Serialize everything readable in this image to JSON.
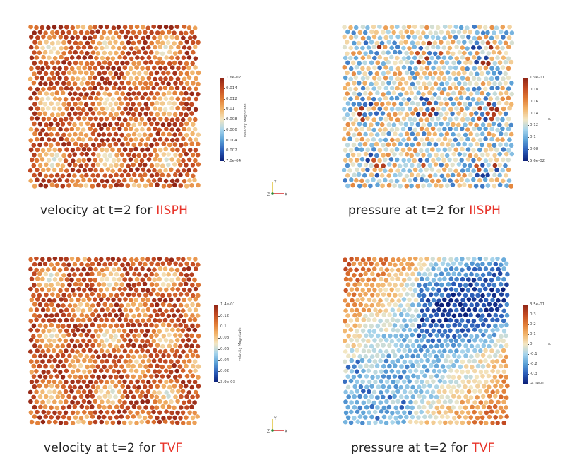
{
  "panels": [
    {
      "id": "iisph-velocity",
      "caption_text": "velocity at t=2 for ",
      "caption_method": "IISPH",
      "field": "velocity",
      "pattern": "vortex-cells",
      "seed": 11,
      "colorbar": {
        "title": "velocity Magnitude",
        "ticks": [
          "1.6e-02",
          "0.014",
          "0.012",
          "0.01",
          "0.008",
          "0.006",
          "0.004",
          "0.002",
          "7.0e-04"
        ]
      }
    },
    {
      "id": "iisph-pressure",
      "caption_text": "pressure at t=2 for ",
      "caption_method": "IISPH",
      "field": "pressure",
      "pattern": "noisy",
      "seed": 23,
      "colorbar": {
        "title": "p",
        "ticks": [
          "1.9e-01",
          "0.18",
          "0.16",
          "0.14",
          "0.12",
          "0.1",
          "0.08",
          "5.6e-02"
        ]
      }
    },
    {
      "id": "tvf-velocity",
      "caption_text": "velocity at t=2 for ",
      "caption_method": "TVF",
      "field": "velocity",
      "pattern": "vortex-cells",
      "seed": 37,
      "colorbar": {
        "title": "velocity Magnitude",
        "ticks": [
          "1.4e-01",
          "0.12",
          "0.1",
          "0.08",
          "0.06",
          "0.04",
          "0.02",
          "3.9e-03"
        ]
      }
    },
    {
      "id": "tvf-pressure",
      "caption_text": "pressure at t=2 for ",
      "caption_method": "TVF",
      "field": "pressure",
      "pattern": "smooth",
      "seed": 51,
      "colorbar": {
        "title": "p",
        "ticks": [
          "3.5e-01",
          "0.3",
          "0.2",
          "0.1",
          "0",
          "-0.1",
          "-0.2",
          "-0.3",
          "-4.1e-01"
        ]
      }
    }
  ],
  "axes_widget": {
    "labels": [
      "Y",
      "Z",
      "X"
    ],
    "colors": {
      "y": "#e0c23a",
      "z": "#2a8a3a",
      "x": "#d42a2a"
    }
  },
  "colormap": [
    "#0b1f78",
    "#2a5cb8",
    "#5aa0d6",
    "#a6d4ec",
    "#f3e6c2",
    "#f2b46a",
    "#e07b34",
    "#c24a22",
    "#8e2416"
  ],
  "accent_color": "#e8342a"
}
